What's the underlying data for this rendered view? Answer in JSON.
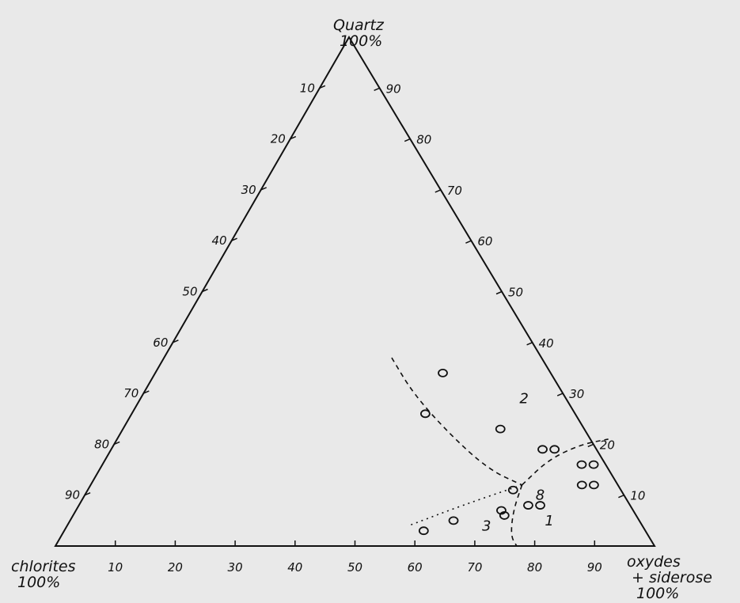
{
  "chart_data": {
    "type": "scatter",
    "chart_kind": "ternary",
    "title": "",
    "vertices": {
      "top": [
        "Quartz",
        "100%"
      ],
      "left": [
        "chlorites",
        "100%"
      ],
      "right": [
        "oxydes",
        "+ siderose",
        "100%"
      ]
    },
    "ticks": [
      10,
      20,
      30,
      40,
      50,
      60,
      70,
      80,
      90
    ],
    "tick_labels": [
      "10",
      "20",
      "30",
      "40",
      "50",
      "60",
      "70",
      "80",
      "90"
    ],
    "zones": [
      {
        "label": "1",
        "a": 5,
        "b": 80
      },
      {
        "label": "2",
        "a": 29,
        "b": 64
      },
      {
        "label": "3",
        "a": 4,
        "b": 70
      },
      {
        "label": "8",
        "a": 10,
        "b": 76
      }
    ],
    "points": [
      {
        "a": 34,
        "b": 48
      },
      {
        "a": 26,
        "b": 49
      },
      {
        "a": 23,
        "b": 63
      },
      {
        "a": 19,
        "b": 72
      },
      {
        "a": 19,
        "b": 74
      },
      {
        "a": 16,
        "b": 80
      },
      {
        "a": 16,
        "b": 82
      },
      {
        "a": 12,
        "b": 82
      },
      {
        "a": 12,
        "b": 84
      },
      {
        "a": 8,
        "b": 75
      },
      {
        "a": 8,
        "b": 77
      },
      {
        "a": 11,
        "b": 71
      },
      {
        "a": 7,
        "b": 71
      },
      {
        "a": 6,
        "b": 72
      },
      {
        "a": 5,
        "b": 64
      },
      {
        "a": 3,
        "b": 60
      }
    ],
    "boundaries": [
      [
        {
          "a": 37,
          "b": 38
        },
        {
          "a": 30,
          "b": 45
        },
        {
          "a": 22,
          "b": 55
        },
        {
          "a": 15,
          "b": 65
        },
        {
          "a": 12,
          "b": 72
        }
      ],
      [
        {
          "a": 12,
          "b": 72
        },
        {
          "a": 17,
          "b": 74
        },
        {
          "a": 20,
          "b": 78
        },
        {
          "a": 21,
          "b": 82
        }
      ],
      [
        {
          "a": 12,
          "b": 72
        },
        {
          "a": 7,
          "b": 73
        },
        {
          "a": 2,
          "b": 75
        },
        {
          "a": 0,
          "b": 77
        }
      ],
      [
        {
          "a": 12,
          "b": 72
        },
        {
          "a": 8,
          "b": 64
        },
        {
          "a": 4,
          "b": 57
        }
      ]
    ]
  }
}
